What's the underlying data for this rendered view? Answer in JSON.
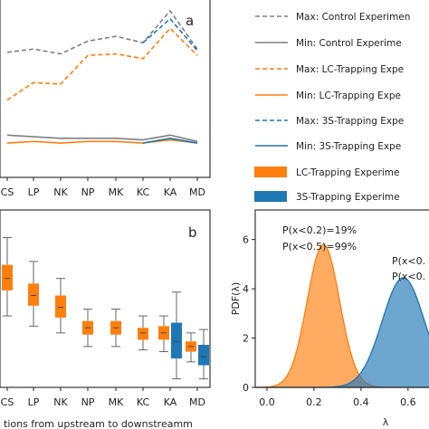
{
  "colors": {
    "control": "#7f7f7f",
    "lc": "#ff7f0e",
    "s3": "#1f77b4"
  },
  "legend": [
    {
      "label": "Max: Control Experimen",
      "color": "#7f7f7f",
      "style": "dashed"
    },
    {
      "label": "Min: Control Experime",
      "color": "#7f7f7f",
      "style": "solid"
    },
    {
      "label": "Max: LC-Trapping Expe",
      "color": "#ff7f0e",
      "style": "dashed"
    },
    {
      "label": "Min: LC-Trapping Expe",
      "color": "#ff7f0e",
      "style": "solid"
    },
    {
      "label": "Max: 3S-Trapping Expe",
      "color": "#1f77b4",
      "style": "dashed"
    },
    {
      "label": "Min: 3S-Trapping Expe",
      "color": "#1f77b4",
      "style": "solid"
    },
    {
      "label": "LC-Trapping Experime",
      "color": "#ff7f0e",
      "style": "patch"
    },
    {
      "label": "3S-Trapping Experime",
      "color": "#1f77b4",
      "style": "patch"
    }
  ],
  "chart_data": [
    {
      "type": "line",
      "panel": "a",
      "categories": [
        "CS",
        "LP",
        "NK",
        "NP",
        "MK",
        "KC",
        "KA",
        "MD"
      ],
      "ylim": [
        0,
        1
      ],
      "series": [
        {
          "name": "Max: Control Experimen",
          "values": [
            0.74,
            0.76,
            0.73,
            0.81,
            0.84,
            0.8,
            1.0,
            0.76
          ]
        },
        {
          "name": "Min: Control Experime",
          "values": [
            0.22,
            0.21,
            0.2,
            0.2,
            0.2,
            0.19,
            0.22,
            0.18
          ]
        },
        {
          "name": "Max: LC-Trapping Expe",
          "values": [
            0.44,
            0.55,
            0.54,
            0.72,
            0.73,
            0.7,
            0.89,
            0.72
          ]
        },
        {
          "name": "Min: LC-Trapping Expe",
          "values": [
            0.17,
            0.18,
            0.17,
            0.18,
            0.18,
            0.17,
            0.19,
            0.17
          ]
        },
        {
          "name": "Max: 3S-Trapping Expe",
          "values": [
            null,
            null,
            null,
            null,
            null,
            0.8,
            0.95,
            0.75
          ]
        },
        {
          "name": "Min: 3S-Trapping Expe",
          "values": [
            null,
            null,
            null,
            null,
            null,
            0.17,
            0.2,
            0.17
          ]
        }
      ],
      "panel_label": "a"
    },
    {
      "type": "box",
      "panel": "b",
      "categories": [
        "CS",
        "LP",
        "NK",
        "NP",
        "MK",
        "KC",
        "KA",
        "MD"
      ],
      "xlabel": "tions from upstream to downstreamm",
      "ylim": [
        0,
        1
      ],
      "series": [
        {
          "name": "LC-Trapping Experime",
          "boxes": [
            {
              "q1": 0.57,
              "median": 0.64,
              "q3": 0.72,
              "whislo": 0.42,
              "whishi": 0.88
            },
            {
              "q1": 0.48,
              "median": 0.54,
              "q3": 0.61,
              "whislo": 0.36,
              "whishi": 0.74
            },
            {
              "q1": 0.41,
              "median": 0.47,
              "q3": 0.54,
              "whislo": 0.32,
              "whishi": 0.64
            },
            {
              "q1": 0.31,
              "median": 0.35,
              "q3": 0.39,
              "whislo": 0.24,
              "whishi": 0.46
            },
            {
              "q1": 0.31,
              "median": 0.35,
              "q3": 0.39,
              "whislo": 0.24,
              "whishi": 0.46
            },
            {
              "q1": 0.28,
              "median": 0.32,
              "q3": 0.35,
              "whislo": 0.22,
              "whishi": 0.42
            },
            {
              "q1": 0.28,
              "median": 0.32,
              "q3": 0.36,
              "whislo": 0.21,
              "whishi": 0.42
            },
            {
              "q1": 0.21,
              "median": 0.24,
              "q3": 0.27,
              "whislo": 0.15,
              "whishi": 0.32
            }
          ]
        },
        {
          "name": "3S-Trapping Experime",
          "boxes": [
            null,
            null,
            null,
            null,
            null,
            null,
            {
              "q1": 0.17,
              "median": 0.27,
              "q3": 0.38,
              "whislo": 0.05,
              "whishi": 0.56
            },
            {
              "q1": 0.13,
              "median": 0.18,
              "q3": 0.25,
              "whislo": 0.05,
              "whishi": 0.34
            }
          ]
        }
      ],
      "panel_label": "b"
    },
    {
      "type": "area",
      "panel": "c",
      "xlabel": "λ",
      "ylabel": "PDF(λ)",
      "xlim": [
        -0.05,
        0.72
      ],
      "ylim": [
        0,
        7.2
      ],
      "xticks": [
        "0.0",
        "0.2",
        "0.4",
        "0.6"
      ],
      "yticks": [
        "0",
        "2",
        "4",
        "6"
      ],
      "series": [
        {
          "name": "LC-Trapping Experime",
          "mean": 0.24,
          "sd": 0.069,
          "peak": 5.8
        },
        {
          "name": "3S-Trapping Experime",
          "mean": 0.58,
          "sd": 0.09,
          "peak": 4.45
        }
      ],
      "annotations": [
        "P(x<0.2)=19%",
        "P(x<0.5)=99%",
        "P(x<0.",
        "P(x<0."
      ]
    }
  ]
}
